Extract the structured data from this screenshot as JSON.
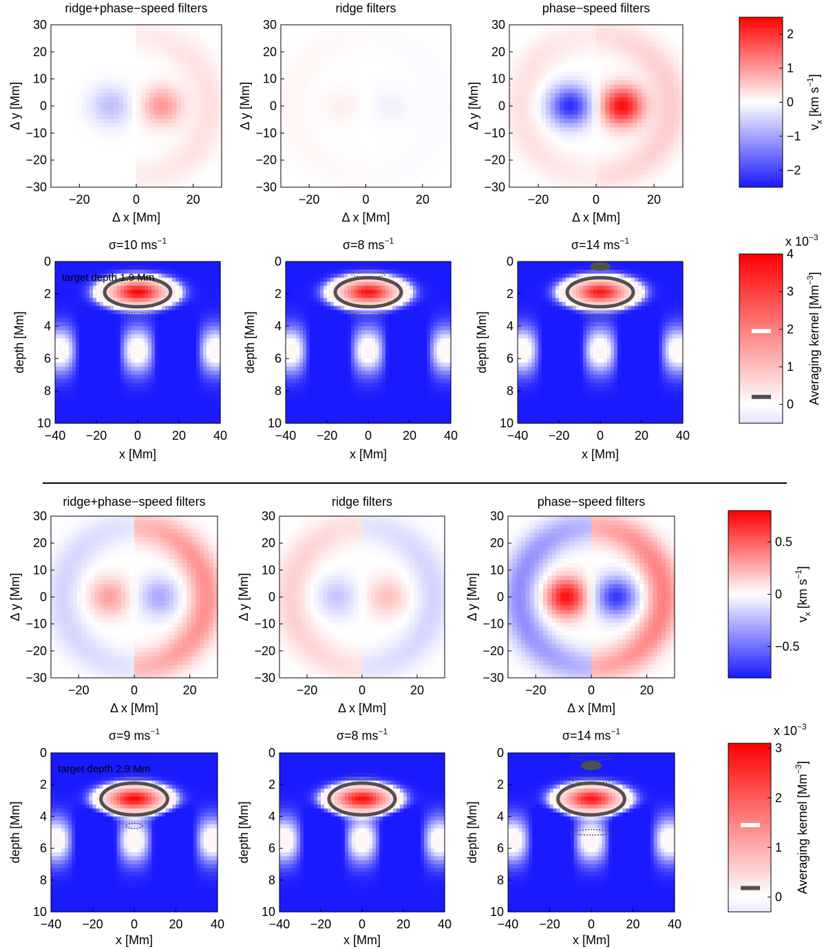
{
  "figure_sections": [
    "upper",
    "lower"
  ],
  "colors": {
    "blue": "#1a1aff",
    "white": "#ffffff",
    "red": "#ff0000",
    "contour": "#505050",
    "axis": "#000000"
  },
  "chart_data": [
    {
      "type": "heatmap",
      "name": "upper-vx-ridge-phase-speed",
      "title": "ridge+phase−speed filters",
      "xlabel": "Δ x [Mm]",
      "ylabel": "Δ y [Mm]",
      "xlim": [
        -30,
        30
      ],
      "ylim": [
        -30,
        30
      ],
      "xticks": [
        -20,
        0,
        20
      ],
      "xticklabels": [
        "−20",
        "0",
        "20"
      ],
      "yticks": [
        30,
        20,
        10,
        0,
        -10,
        -20,
        -30
      ],
      "yticklabels": [
        "30",
        "20",
        "10",
        "0",
        "−10",
        "−20",
        "−30"
      ],
      "colorbar": "cb-upper-vx",
      "features": {
        "left_lobe": -0.7,
        "right_lobe": 1.0,
        "ring": 0.3,
        "ring_left": 0.0
      }
    },
    {
      "type": "heatmap",
      "name": "upper-vx-ridge",
      "title": "ridge filters",
      "xlabel": "Δ x [Mm]",
      "ylabel": "Δ y [Mm]",
      "xlim": [
        -30,
        30
      ],
      "ylim": [
        -30,
        30
      ],
      "xticks": [
        -20,
        0,
        20
      ],
      "xticklabels": [
        "−20",
        "0",
        "20"
      ],
      "yticks": [
        30,
        20,
        10,
        0,
        -10,
        -20,
        -30
      ],
      "yticklabels": [
        "30",
        "20",
        "10",
        "0",
        "−10",
        "−20",
        "−30"
      ],
      "colorbar": "cb-upper-vx",
      "features": {
        "left_lobe": 0.15,
        "right_lobe": -0.15,
        "ring": -0.05,
        "ring_left": 0.1
      }
    },
    {
      "type": "heatmap",
      "name": "upper-vx-phase-speed",
      "title": "phase−speed filters",
      "xlabel": "Δ x [Mm]",
      "ylabel": "Δ y [Mm]",
      "xlim": [
        -30,
        30
      ],
      "ylim": [
        -30,
        30
      ],
      "xticks": [
        -20,
        0,
        20
      ],
      "xticklabels": [
        "−20",
        "0",
        "20"
      ],
      "yticks": [
        30,
        20,
        10,
        0,
        -10,
        -20,
        -30
      ],
      "yticklabels": [
        "30",
        "20",
        "10",
        "0",
        "−10",
        "−20",
        "−30"
      ],
      "colorbar": "cb-upper-vx",
      "features": {
        "left_lobe": -2.3,
        "right_lobe": 2.4,
        "ring": 0.5,
        "ring_left": 0.3
      }
    },
    {
      "type": "heatmap",
      "name": "upper-kernel-sigma10",
      "title": "σ=10 ms",
      "title_sup": "−1",
      "annotation": "target depth 1.9 Mm",
      "xlabel": "x [Mm]",
      "ylabel": "depth [Mm]",
      "xlim": [
        -40,
        40
      ],
      "ylim": [
        0,
        10
      ],
      "xticks": [
        -40,
        -20,
        0,
        20,
        40
      ],
      "xticklabels": [
        "−40",
        "−20",
        "0",
        "20",
        "40"
      ],
      "yticks": [
        0,
        2,
        4,
        6,
        8,
        10
      ],
      "yticklabels": [
        "0",
        "2",
        "4",
        "6",
        "8",
        "10"
      ],
      "colorbar": "cb-upper-kernel",
      "target_depth": 1.9,
      "peak": 3.9,
      "contour_half_width_x": 16,
      "contour_half_height_depth": 0.9,
      "ripples": [
        {
          "x": 0,
          "depth": 3.3,
          "w": 6
        }
      ]
    },
    {
      "type": "heatmap",
      "name": "upper-kernel-sigma8",
      "title": "σ=8 ms",
      "title_sup": "−1",
      "xlabel": "x [Mm]",
      "ylabel": "depth [Mm]",
      "xlim": [
        -40,
        40
      ],
      "ylim": [
        0,
        10
      ],
      "xticks": [
        -40,
        -20,
        0,
        20,
        40
      ],
      "xticklabels": [
        "−40",
        "−20",
        "0",
        "20",
        "40"
      ],
      "yticks": [
        0,
        2,
        4,
        6,
        8,
        10
      ],
      "yticklabels": [
        "0",
        "2",
        "4",
        "6",
        "8",
        "10"
      ],
      "colorbar": "cb-upper-kernel",
      "target_depth": 1.9,
      "peak": 3.7,
      "contour_half_width_x": 16,
      "contour_half_height_depth": 0.9,
      "ripples": [
        {
          "x": 0,
          "depth": 0.8,
          "w": 8
        },
        {
          "x": 0,
          "depth": 3.3,
          "w": 8
        }
      ]
    },
    {
      "type": "heatmap",
      "name": "upper-kernel-sigma14",
      "title": "σ=14 ms",
      "title_sup": "−1",
      "xlabel": "x [Mm]",
      "ylabel": "depth [Mm]",
      "xlim": [
        -40,
        40
      ],
      "ylim": [
        0,
        10
      ],
      "xticks": [
        -40,
        -20,
        0,
        20,
        40
      ],
      "xticklabels": [
        "−40",
        "−20",
        "0",
        "20",
        "40"
      ],
      "yticks": [
        0,
        2,
        4,
        6,
        8,
        10
      ],
      "yticklabels": [
        "0",
        "2",
        "4",
        "6",
        "8",
        "10"
      ],
      "colorbar": "cb-upper-kernel",
      "target_depth": 1.9,
      "peak": 3.6,
      "contour_half_width_x": 16,
      "contour_half_height_depth": 0.9,
      "ripples": [
        {
          "x": 0,
          "depth": 3.4,
          "w": 8
        }
      ],
      "blobs": [
        {
          "x": 0,
          "depth": 0.3,
          "w": 5,
          "h": 0.2
        }
      ]
    },
    {
      "type": "heatmap",
      "name": "lower-vx-ridge-phase-speed",
      "title": "ridge+phase−speed filters",
      "xlabel": "Δ x [Mm]",
      "ylabel": "Δ y [Mm]",
      "xlim": [
        -30,
        30
      ],
      "ylim": [
        -30,
        30
      ],
      "xticks": [
        -20,
        0,
        20
      ],
      "xticklabels": [
        "−20",
        "0",
        "20"
      ],
      "yticks": [
        30,
        20,
        10,
        0,
        -10,
        -20,
        -30
      ],
      "yticklabels": [
        "30",
        "20",
        "10",
        "0",
        "−10",
        "−20",
        "−30"
      ],
      "colorbar": "cb-lower-vx",
      "features": {
        "left_lobe": 0.3,
        "right_lobe": -0.3,
        "ring": 0.35,
        "ring_left": -0.15
      }
    },
    {
      "type": "heatmap",
      "name": "lower-vx-ridge",
      "title": "ridge filters",
      "xlabel": "Δ x [Mm]",
      "ylabel": "Δ y [Mm]",
      "xlim": [
        -30,
        30
      ],
      "ylim": [
        -30,
        30
      ],
      "xticks": [
        -20,
        0,
        20
      ],
      "xticklabels": [
        "−20",
        "0",
        "20"
      ],
      "yticks": [
        30,
        20,
        10,
        0,
        -10,
        -20,
        -30
      ],
      "yticklabels": [
        "30",
        "20",
        "10",
        "0",
        "−10",
        "−20",
        "−30"
      ],
      "colorbar": "cb-lower-vx",
      "features": {
        "left_lobe": -0.2,
        "right_lobe": 0.2,
        "ring": -0.15,
        "ring_left": 0.15
      }
    },
    {
      "type": "heatmap",
      "name": "lower-vx-phase-speed",
      "title": "phase−speed filters",
      "xlabel": "Δ x [Mm]",
      "ylabel": "Δ y [Mm]",
      "xlim": [
        -30,
        30
      ],
      "ylim": [
        -30,
        30
      ],
      "xticks": [
        -20,
        0,
        20
      ],
      "xticklabels": [
        "−20",
        "0",
        "20"
      ],
      "yticks": [
        30,
        20,
        10,
        0,
        -10,
        -20,
        -30
      ],
      "yticklabels": [
        "30",
        "20",
        "10",
        "0",
        "−10",
        "−20",
        "−30"
      ],
      "colorbar": "cb-lower-vx",
      "features": {
        "left_lobe": 0.75,
        "right_lobe": -0.7,
        "ring": 0.4,
        "ring_left": -0.4
      }
    },
    {
      "type": "heatmap",
      "name": "lower-kernel-sigma9",
      "title": "σ=9 ms",
      "title_sup": "−1",
      "annotation": "target depth 2.9 Mm",
      "xlabel": "x [Mm]",
      "ylabel": "depth [Mm]",
      "xlim": [
        -40,
        40
      ],
      "ylim": [
        0,
        10
      ],
      "xticks": [
        -40,
        -20,
        0,
        20,
        40
      ],
      "xticklabels": [
        "−40",
        "−20",
        "0",
        "20",
        "40"
      ],
      "yticks": [
        0,
        2,
        4,
        6,
        8,
        10
      ],
      "yticklabels": [
        "0",
        "2",
        "4",
        "6",
        "8",
        "10"
      ],
      "colorbar": "cb-lower-kernel",
      "target_depth": 2.9,
      "peak": 3.0,
      "contour_half_width_x": 16,
      "contour_half_height_depth": 1.0,
      "ripples": [
        {
          "x": 0,
          "depth": 1.5,
          "w": 6
        },
        {
          "x": 0,
          "depth": 4.6,
          "w": 4
        }
      ]
    },
    {
      "type": "heatmap",
      "name": "lower-kernel-sigma8",
      "title": "σ=8 ms",
      "title_sup": "−1",
      "xlabel": "x [Mm]",
      "ylabel": "depth [Mm]",
      "xlim": [
        -40,
        40
      ],
      "ylim": [
        0,
        10
      ],
      "xticks": [
        -40,
        -20,
        0,
        20,
        40
      ],
      "xticklabels": [
        "−40",
        "−20",
        "0",
        "20",
        "40"
      ],
      "yticks": [
        0,
        2,
        4,
        6,
        8,
        10
      ],
      "yticklabels": [
        "0",
        "2",
        "4",
        "6",
        "8",
        "10"
      ],
      "colorbar": "cb-lower-kernel",
      "target_depth": 2.9,
      "peak": 2.9,
      "contour_half_width_x": 16,
      "contour_half_height_depth": 1.0,
      "ripples": [
        {
          "x": 0,
          "depth": 1.5,
          "w": 8
        }
      ]
    },
    {
      "type": "heatmap",
      "name": "lower-kernel-sigma14",
      "title": "σ=14 ms",
      "title_sup": "−1",
      "xlabel": "x [Mm]",
      "ylabel": "depth [Mm]",
      "xlim": [
        -40,
        40
      ],
      "ylim": [
        0,
        10
      ],
      "xticks": [
        -40,
        -20,
        0,
        20,
        40
      ],
      "xticklabels": [
        "−40",
        "−20",
        "0",
        "20",
        "40"
      ],
      "yticks": [
        0,
        2,
        4,
        6,
        8,
        10
      ],
      "yticklabels": [
        "0",
        "2",
        "4",
        "6",
        "8",
        "10"
      ],
      "colorbar": "cb-lower-kernel",
      "target_depth": 2.9,
      "peak": 2.8,
      "contour_half_width_x": 16,
      "contour_half_height_depth": 1.0,
      "ripples": [
        {
          "x": 0,
          "depth": 0.3,
          "w": 10
        },
        {
          "x": 0,
          "depth": 1.7,
          "w": 10
        },
        {
          "x": 0,
          "depth": 5.0,
          "w": 10
        }
      ],
      "blobs": [
        {
          "x": 0,
          "depth": 0.8,
          "w": 5,
          "h": 0.2
        }
      ]
    }
  ],
  "colorbars": [
    {
      "name": "cb-upper-vx",
      "label": "v",
      "label_sub": "x",
      "label_rest": " [km s",
      "label_sup": "−1",
      "label_end": "]",
      "range": [
        -2.5,
        2.5
      ],
      "ticks": [
        2,
        1,
        0,
        -1,
        -2
      ],
      "ticklabels": [
        "2",
        "1",
        "0",
        "−1",
        "−2"
      ],
      "multiplier": "",
      "markers": []
    },
    {
      "name": "cb-upper-kernel",
      "label": "Averaging kernel [Mm",
      "label_sup": "−3",
      "label_end": "]",
      "range": [
        -0.5,
        4.0
      ],
      "ticks": [
        4,
        3,
        2,
        1,
        0
      ],
      "ticklabels": [
        "4",
        "3",
        "2",
        "1",
        "0"
      ],
      "multiplier": "x 10",
      "multiplier_sup": "−3",
      "markers": [
        {
          "value": 1.95,
          "color": "#ffffff"
        },
        {
          "value": 0.2,
          "color": "#505050"
        }
      ]
    },
    {
      "name": "cb-lower-vx",
      "label": "v",
      "label_sub": "x",
      "label_rest": " [km s",
      "label_sup": "−1",
      "label_end": "]",
      "range": [
        -0.8,
        0.8
      ],
      "ticks": [
        0.5,
        0,
        -0.5
      ],
      "ticklabels": [
        "0.5",
        "0",
        "−0.5"
      ],
      "multiplier": "",
      "markers": []
    },
    {
      "name": "cb-lower-kernel",
      "label": "Averaging kernel [Mm",
      "label_sup": "−3",
      "label_end": "]",
      "range": [
        -0.3,
        3.1
      ],
      "ticks": [
        3,
        2,
        1,
        0
      ],
      "ticklabels": [
        "3",
        "2",
        "1",
        "0"
      ],
      "multiplier": "x 10",
      "multiplier_sup": "−3",
      "markers": [
        {
          "value": 1.45,
          "color": "#ffffff"
        },
        {
          "value": 0.18,
          "color": "#505050"
        }
      ]
    }
  ]
}
